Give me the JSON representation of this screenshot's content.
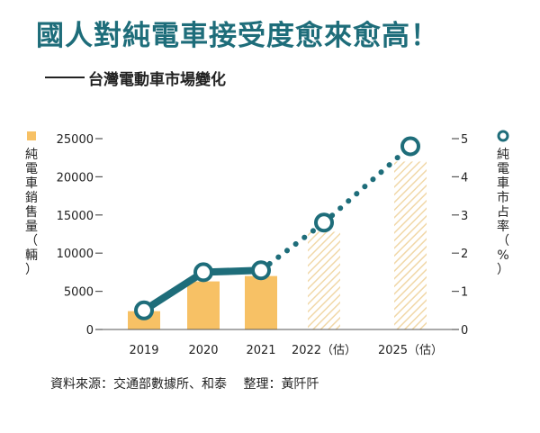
{
  "header": {
    "title": "國人對純電車接受度愈來愈高！",
    "subtitle": "台灣電動車市場變化"
  },
  "colors": {
    "title": "#1e6d7a",
    "bar": "#f7c165",
    "bar_estimate_stripe": "#f1d8a8",
    "line": "#1e6d7a",
    "marker_fill": "#ffffff",
    "axis": "#555555"
  },
  "chart_data": {
    "type": "bar",
    "categories": [
      "2019",
      "2020",
      "2021",
      "2022（估）",
      "2025（估）"
    ],
    "series": [
      {
        "name": "純電車銷售量（輛）",
        "type": "bar",
        "axis": "left",
        "values": [
          2400,
          6300,
          7000,
          12800,
          22000
        ],
        "estimated": [
          false,
          false,
          false,
          true,
          true
        ]
      },
      {
        "name": "純電車市占率（%）",
        "type": "line",
        "axis": "right",
        "values": [
          0.5,
          1.5,
          1.55,
          2.8,
          4.8
        ],
        "line_style": [
          "solid",
          "solid",
          "dotted",
          "dotted"
        ]
      }
    ],
    "ylabel_left": "純電車銷售量（輛）",
    "ylabel_right": "純電車市占率（%）",
    "ylim_left": [
      0,
      25000
    ],
    "yticks_left": [
      "0",
      "5000",
      "10000",
      "15000",
      "20000",
      "25000"
    ],
    "ylim_right": [
      0,
      5
    ],
    "yticks_right": [
      "0",
      "1",
      "2",
      "3",
      "4",
      "5"
    ],
    "grid": false,
    "legend": "axis-labels"
  },
  "footer": {
    "source": "資料來源：交通部數據所、和泰　 整理：黃阡阡"
  }
}
